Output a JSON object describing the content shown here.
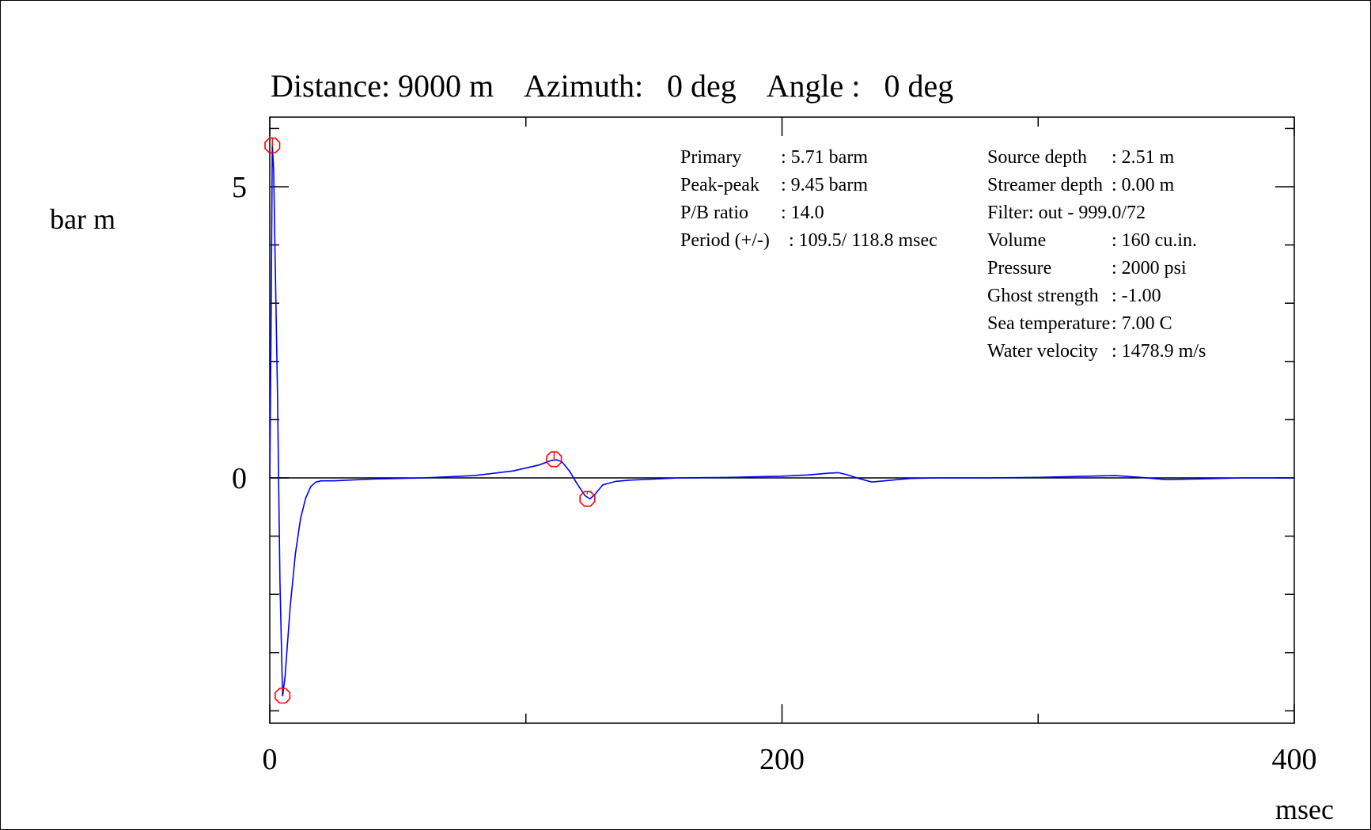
{
  "chart_data": {
    "type": "line",
    "title": "Distance: 9000 m    Azimuth:   0 deg    Angle :   0 deg",
    "xlabel": "msec",
    "ylabel": "bar m",
    "xlim": [
      0,
      400
    ],
    "ylim": [
      -4.2,
      6.2
    ],
    "x_tick_labels": [
      "0",
      "200",
      "400"
    ],
    "y_tick_labels": [
      "5",
      "0"
    ],
    "x_major_ticks": [
      0,
      200,
      400
    ],
    "x_minor_ticks": [
      100,
      300
    ],
    "y_major_ticks": [
      5,
      0
    ],
    "y_minor_ticks": [
      6,
      4,
      3,
      2,
      1,
      -1,
      -2,
      -3,
      -4
    ],
    "grid": false,
    "zero_line": true,
    "series": [
      {
        "color": "#0000ff",
        "x": [
          0,
          0.5,
          1,
          1.5,
          2,
          3,
          4,
          5,
          6,
          8,
          10,
          12,
          14,
          16,
          18,
          20,
          25,
          30,
          40,
          60,
          80,
          95,
          105,
          110,
          112,
          114,
          117,
          120,
          123,
          125,
          127,
          130,
          135,
          140,
          150,
          160,
          180,
          200,
          210,
          218,
          222,
          225,
          230,
          235,
          240,
          250,
          260,
          280,
          300,
          320,
          330,
          340,
          350,
          360,
          380,
          400
        ],
        "y": [
          0,
          2.5,
          5.71,
          5.3,
          4.0,
          1.5,
          -1.8,
          -3.75,
          -3.4,
          -2.2,
          -1.3,
          -0.7,
          -0.35,
          -0.15,
          -0.07,
          -0.05,
          -0.05,
          -0.04,
          -0.02,
          0.0,
          0.04,
          0.12,
          0.22,
          0.3,
          0.31,
          0.28,
          0.12,
          -0.1,
          -0.3,
          -0.36,
          -0.28,
          -0.12,
          -0.06,
          -0.04,
          -0.02,
          0.0,
          0.01,
          0.03,
          0.05,
          0.08,
          0.09,
          0.06,
          -0.01,
          -0.07,
          -0.05,
          -0.01,
          0.0,
          0.0,
          0.01,
          0.03,
          0.04,
          0.01,
          -0.03,
          -0.02,
          0.0,
          0.0
        ]
      }
    ],
    "markers": [
      {
        "name": "primary-peak",
        "x": 1,
        "y": 5.71
      },
      {
        "name": "primary-trough",
        "x": 5,
        "y": -3.74
      },
      {
        "name": "bubble-peak",
        "x": 111,
        "y": 0.32
      },
      {
        "name": "bubble-trough",
        "x": 124,
        "y": -0.36
      }
    ],
    "marker_color": "#ff0000",
    "annotations": {
      "left": [
        {
          "label": "Primary",
          "value": ":  5.71 barm"
        },
        {
          "label": "Peak-peak",
          "value": ":  9.45 barm"
        },
        {
          "label": "P/B ratio",
          "value": ":  14.0"
        },
        {
          "label": "Period (+/-)",
          "value": ": 109.5/ 118.8  msec"
        }
      ],
      "right": [
        {
          "label": "Source depth",
          "value": ":  2.51 m"
        },
        {
          "label": "Streamer depth",
          "value": ":  0.00 m"
        },
        {
          "label": "Filter: out  - 999.0/72",
          "value": ""
        },
        {
          "label": "Volume",
          "value": ":   160 cu.in."
        },
        {
          "label": "Pressure",
          "value": ":  2000 psi"
        },
        {
          "label": "Ghost strength",
          "value": ": -1.00"
        },
        {
          "label": "Sea temperature",
          "value": ":  7.00 C"
        },
        {
          "label": "Water velocity",
          "value": ": 1478.9 m/s"
        }
      ]
    }
  }
}
